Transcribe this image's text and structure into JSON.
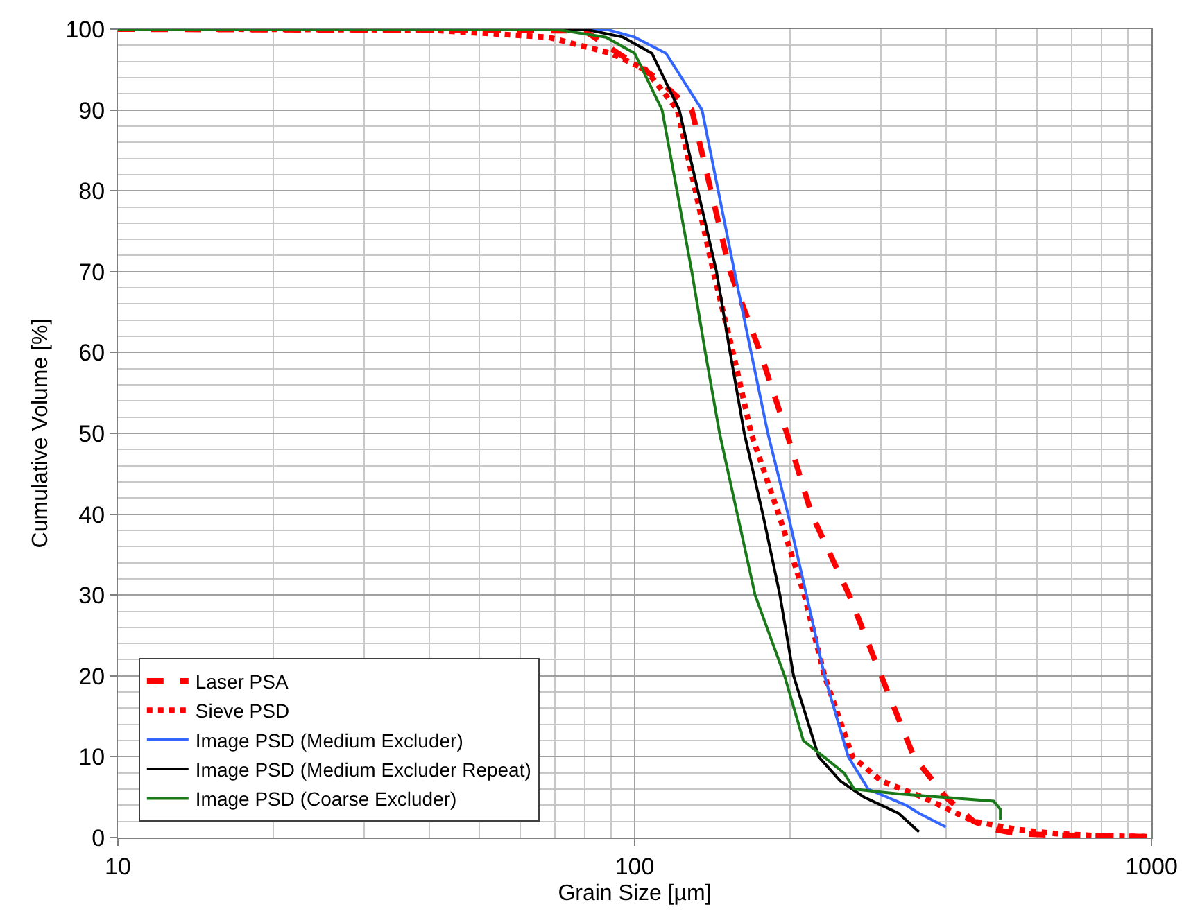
{
  "chart_data": {
    "type": "line",
    "xlabel": "Grain Size [µm]",
    "ylabel": "Cumulative Volume [%]",
    "log": "x",
    "xlim": [
      10,
      1000
    ],
    "xticks": [
      10,
      100,
      1000
    ],
    "ylim": [
      0,
      100
    ],
    "yticks": [
      0,
      10,
      20,
      30,
      40,
      50,
      60,
      70,
      80,
      90,
      100
    ],
    "grid": true,
    "legend": "bottom left",
    "marker": "none",
    "series": [
      {
        "name": "Laser PSA",
        "color": "#ff0000",
        "line_style": "dashed",
        "x": [
          10,
          80,
          93,
          110,
          129,
          153,
          175,
          197,
          220,
          260,
          300,
          347,
          400,
          453,
          495,
          549,
          650,
          800,
          1000
        ],
        "values": [
          100,
          99.8,
          97,
          94,
          90,
          70,
          60,
          50,
          40,
          30,
          20,
          10,
          5,
          2,
          1,
          0.5,
          0.3,
          0.2,
          0.1
        ]
      },
      {
        "name": "Sieve PSD",
        "color": "#ff0000",
        "line_style": "dotted",
        "x": [
          15.5,
          40,
          68,
          90,
          105,
          121,
          142,
          155,
          168,
          190,
          213,
          233,
          264,
          300,
          361,
          453,
          550,
          650,
          800,
          1000
        ],
        "values": [
          100,
          99.9,
          99,
          97,
          95,
          90,
          70,
          60,
          50,
          40,
          30,
          20,
          10,
          7,
          5,
          2,
          1,
          0.5,
          0.2,
          0.1
        ]
      },
      {
        "name": "Image PSD (Medium Excluder)",
        "color": "#3366ff",
        "line_style": "solid",
        "x": [
          10,
          88,
          100,
          115,
          135,
          156,
          168,
          181,
          198,
          215,
          233,
          259,
          283,
          335,
          355,
          400
        ],
        "values": [
          100,
          100,
          99,
          97,
          90,
          70,
          60,
          50,
          40,
          30,
          20,
          10,
          6,
          4,
          3,
          1.3
        ]
      },
      {
        "name": "Image PSD (Medium Excluder Repeat)",
        "color": "#000000",
        "line_style": "solid",
        "x": [
          10,
          80,
          95,
          108,
          122,
          144,
          153,
          163,
          177,
          191,
          203,
          227,
          250,
          278,
          324,
          355
        ],
        "values": [
          100,
          100,
          99,
          97,
          90,
          70,
          60,
          50,
          40,
          30,
          20,
          10,
          7,
          5,
          3,
          0.7
        ]
      },
      {
        "name": "Image PSD (Coarse Excluder)",
        "color": "#1a7a1a",
        "line_style": "solid",
        "x": [
          10,
          70,
          88,
          100,
          113,
          129,
          137,
          146,
          158,
          171,
          195,
          212,
          254,
          266,
          325,
          495,
          510,
          510
        ],
        "values": [
          100,
          100,
          99,
          97,
          90,
          70,
          60,
          50,
          40,
          30,
          20,
          12,
          8,
          6,
          5.4,
          4.5,
          3.5,
          2.2
        ]
      }
    ]
  }
}
